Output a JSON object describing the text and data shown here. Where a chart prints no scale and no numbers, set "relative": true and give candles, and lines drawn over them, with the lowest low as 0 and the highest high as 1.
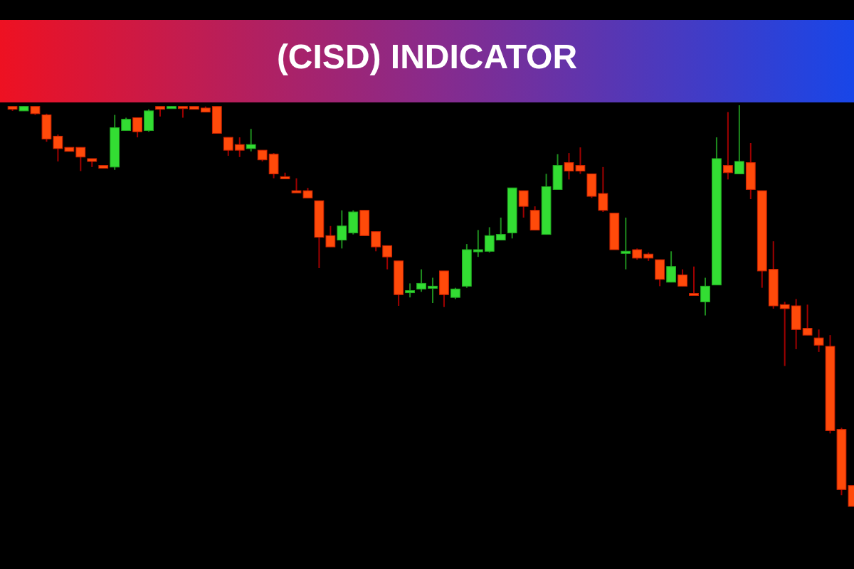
{
  "chart_data": {
    "type": "candlestick",
    "title": "(CISD) INDICATOR",
    "relative": true,
    "categories": [
      null,
      null,
      null,
      null,
      null,
      null,
      null,
      null,
      null,
      null,
      null,
      null,
      null,
      null,
      null,
      null,
      null,
      null,
      null,
      null,
      null,
      null,
      null,
      null,
      null,
      null,
      null,
      null,
      null,
      null,
      null,
      null,
      null,
      null,
      null,
      null,
      null,
      null,
      null,
      null,
      null,
      null,
      null,
      null,
      null,
      null,
      null,
      null,
      null,
      null,
      null,
      null,
      null,
      null,
      null,
      null,
      null,
      null,
      null,
      null,
      null,
      null,
      null,
      null,
      null,
      null,
      null,
      null,
      null,
      null,
      null,
      null,
      null,
      null,
      null
    ],
    "ohlc": [
      [
        0.997,
        0.997,
        0.986,
        0.99
      ],
      [
        0.986,
        0.997,
        0.986,
        0.997
      ],
      [
        0.997,
        0.997,
        0.976,
        0.979
      ],
      [
        0.976,
        0.979,
        0.909,
        0.916
      ],
      [
        0.923,
        0.927,
        0.86,
        0.892
      ],
      [
        0.895,
        0.895,
        0.885,
        0.885
      ],
      [
        0.895,
        0.895,
        0.836,
        0.871
      ],
      [
        0.867,
        0.867,
        0.846,
        0.86
      ],
      [
        0.85,
        0.85,
        0.843,
        0.843
      ],
      [
        0.846,
        0.976,
        0.839,
        0.944
      ],
      [
        0.937,
        0.969,
        0.937,
        0.965
      ],
      [
        0.969,
        0.969,
        0.92,
        0.934
      ],
      [
        0.937,
        0.99,
        0.934,
        0.986
      ],
      [
        0.997,
        0.997,
        0.972,
        0.99
      ],
      [
        0.993,
        0.997,
        0.993,
        0.997
      ],
      [
        0.997,
        0.997,
        0.969,
        0.993
      ],
      [
        0.997,
        0.997,
        0.99,
        0.99
      ],
      [
        0.993,
        0.997,
        0.983,
        0.983
      ],
      [
        0.997,
        0.997,
        0.93,
        0.93
      ],
      [
        0.92,
        0.92,
        0.874,
        0.888
      ],
      [
        0.902,
        0.92,
        0.871,
        0.888
      ],
      [
        0.892,
        0.941,
        0.885,
        0.902
      ],
      [
        0.888,
        0.888,
        0.86,
        0.864
      ],
      [
        0.878,
        0.881,
        0.818,
        0.829
      ],
      [
        0.822,
        0.832,
        0.818,
        0.818
      ],
      [
        0.787,
        0.818,
        0.783,
        0.785
      ],
      [
        0.787,
        0.794,
        0.769,
        0.769
      ],
      [
        0.762,
        0.762,
        0.594,
        0.671
      ],
      [
        0.675,
        0.699,
        0.647,
        0.647
      ],
      [
        0.664,
        0.738,
        0.643,
        0.699
      ],
      [
        0.682,
        0.738,
        0.678,
        0.734
      ],
      [
        0.738,
        0.738,
        0.675,
        0.675
      ],
      [
        0.685,
        0.685,
        0.636,
        0.647
      ],
      [
        0.65,
        0.65,
        0.591,
        0.622
      ],
      [
        0.612,
        0.612,
        0.5,
        0.528
      ],
      [
        0.537,
        0.556,
        0.521,
        0.538
      ],
      [
        0.542,
        0.591,
        0.535,
        0.556
      ],
      [
        0.547,
        0.57,
        0.507,
        0.549
      ],
      [
        0.587,
        0.587,
        0.497,
        0.528
      ],
      [
        0.521,
        0.545,
        0.517,
        0.542
      ],
      [
        0.549,
        0.654,
        0.545,
        0.64
      ],
      [
        0.636,
        0.689,
        0.622,
        0.64
      ],
      [
        0.636,
        0.696,
        0.633,
        0.675
      ],
      [
        0.664,
        0.72,
        0.664,
        0.678
      ],
      [
        0.682,
        0.794,
        0.668,
        0.794
      ],
      [
        0.787,
        0.787,
        0.72,
        0.748
      ],
      [
        0.738,
        0.748,
        0.689,
        0.689
      ],
      [
        0.678,
        0.829,
        0.678,
        0.797
      ],
      [
        0.79,
        0.878,
        0.79,
        0.85
      ],
      [
        0.857,
        0.881,
        0.815,
        0.836
      ],
      [
        0.85,
        0.895,
        0.829,
        0.836
      ],
      [
        0.829,
        0.829,
        0.769,
        0.773
      ],
      [
        0.78,
        0.846,
        0.734,
        0.738
      ],
      [
        0.731,
        0.731,
        0.64,
        0.64
      ],
      [
        0.635,
        0.72,
        0.591,
        0.636
      ],
      [
        0.64,
        0.643,
        0.615,
        0.619
      ],
      [
        0.629,
        0.633,
        0.612,
        0.619
      ],
      [
        0.615,
        0.615,
        0.549,
        0.566
      ],
      [
        0.559,
        0.636,
        0.559,
        0.598
      ],
      [
        0.577,
        0.591,
        0.549,
        0.549
      ],
      [
        0.531,
        0.598,
        0.528,
        0.528
      ],
      [
        0.51,
        0.57,
        0.476,
        0.549
      ],
      [
        0.552,
        0.92,
        0.552,
        0.867
      ],
      [
        0.85,
        0.983,
        0.815,
        0.832
      ],
      [
        0.829,
        1.0,
        0.829,
        0.86
      ],
      [
        0.857,
        0.906,
        0.766,
        0.79
      ],
      [
        0.787,
        0.787,
        0.545,
        0.587
      ],
      [
        0.591,
        0.661,
        0.493,
        0.5
      ],
      [
        0.503,
        0.51,
        0.35,
        0.493
      ],
      [
        0.5,
        0.517,
        0.392,
        0.441
      ],
      [
        0.444,
        0.503,
        0.427,
        0.427
      ],
      [
        0.42,
        0.441,
        0.385,
        0.402
      ],
      [
        0.399,
        0.427,
        0.182,
        0.189
      ],
      [
        0.192,
        0.196,
        0.028,
        0.042
      ],
      [
        0.052,
        0.052,
        0.0,
        0.0
      ]
    ]
  }
}
